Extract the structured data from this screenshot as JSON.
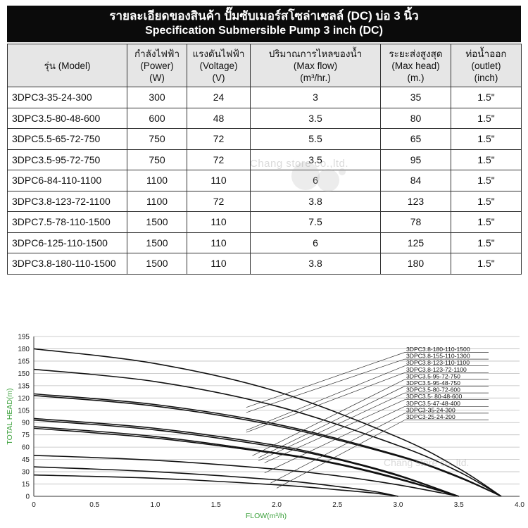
{
  "header": {
    "title_th": "รายละเอียดของสินค้า ปั๊มซับเมอร์สโซล่าเซลล์ (DC) บ่อ 3 นิ้ว",
    "title_en": "Specification Submersible Pump 3 inch (DC)"
  },
  "watermark": "Chang store co.,ltd.",
  "table": {
    "headers": [
      [
        "รุ่น (Model)"
      ],
      [
        "กำลังไฟฟ้า",
        "(Power)",
        "(W)"
      ],
      [
        "แรงดันไฟฟ้า",
        "(Voltage)",
        "(V)"
      ],
      [
        "ปริมาณการไหลของน้ำ",
        "(Max flow)",
        "(m³/hr.)"
      ],
      [
        "ระยะส่งสูงสุด",
        "(Max head)",
        "(m.)"
      ],
      [
        "ท่อน้ำออก",
        "(outlet)",
        "(inch)"
      ]
    ],
    "rows": [
      [
        "3DPC3-35-24-300",
        "300",
        "24",
        "3",
        "35",
        "1.5\""
      ],
      [
        "3DPC3.5-80-48-600",
        "600",
        "48",
        "3.5",
        "80",
        "1.5\""
      ],
      [
        "3DPC5.5-65-72-750",
        "750",
        "72",
        "5.5",
        "65",
        "1.5\""
      ],
      [
        "3DPC3.5-95-72-750",
        "750",
        "72",
        "3.5",
        "95",
        "1.5\""
      ],
      [
        "3DPC6-84-110-1100",
        "1100",
        "110",
        "6",
        "84",
        "1.5\""
      ],
      [
        "3DPC3.8-123-72-1100",
        "1100",
        "72",
        "3.8",
        "123",
        "1.5\""
      ],
      [
        "3DPC7.5-78-110-1500",
        "1500",
        "110",
        "7.5",
        "78",
        "1.5\""
      ],
      [
        "3DPC6-125-110-1500",
        "1500",
        "110",
        "6",
        "125",
        "1.5\""
      ],
      [
        "3DPC3.8-180-110-1500",
        "1500",
        "110",
        "3.8",
        "180",
        "1.5\""
      ]
    ]
  },
  "chart_data": {
    "type": "line",
    "title": "",
    "xlabel": "FLOW(m³/h)",
    "ylabel": "TOTAL HEAD(m)",
    "xlim": [
      0,
      4.0
    ],
    "ylim": [
      0,
      195
    ],
    "xticks": [
      "0",
      "0.5",
      "1.0",
      "1.5",
      "2.0",
      "2.5",
      "3.0",
      "3.5",
      "4.0"
    ],
    "yticks": [
      "0",
      "15",
      "30",
      "45",
      "60",
      "75",
      "90",
      "105",
      "120",
      "135",
      "150",
      "165",
      "180",
      "195"
    ],
    "grid": "horizontal",
    "legend_position": "right",
    "axis_label_color": "#3aa03a",
    "series": [
      {
        "name": "3DPC3.8-180-110-1500",
        "x": [
          0,
          1.0,
          2.0,
          3.0,
          3.5,
          3.85
        ],
        "y": [
          180,
          162,
          128,
          72,
          34,
          0
        ]
      },
      {
        "name": "3DPC3.8-155-110-1300",
        "x": [
          0,
          1.0,
          2.0,
          3.0,
          3.5,
          3.85
        ],
        "y": [
          155,
          140,
          110,
          62,
          30,
          0
        ]
      },
      {
        "name": "3DPC3.8-123-110-1100",
        "x": [
          0,
          1.0,
          2.0,
          3.0,
          3.5,
          3.85
        ],
        "y": [
          125,
          112,
          88,
          50,
          24,
          0
        ]
      },
      {
        "name": "3DPC3.8-123-72-1100",
        "x": [
          0,
          1.0,
          2.0,
          3.0,
          3.5,
          3.85
        ],
        "y": [
          123,
          110,
          86,
          49,
          23,
          0
        ]
      },
      {
        "name": "3DPC3.5-95-72-750",
        "x": [
          0,
          1.0,
          2.0,
          2.5,
          3.0,
          3.5
        ],
        "y": [
          95,
          83,
          62,
          46,
          26,
          0
        ]
      },
      {
        "name": "3DPC3.5-95-48-750",
        "x": [
          0,
          1.0,
          2.0,
          2.5,
          3.0,
          3.5
        ],
        "y": [
          93,
          81,
          60,
          45,
          25,
          0
        ]
      },
      {
        "name": "3DPC3.5-80-72-600",
        "x": [
          0,
          1.0,
          2.0,
          2.5,
          3.0,
          3.5
        ],
        "y": [
          85,
          73,
          53,
          40,
          22,
          0
        ]
      },
      {
        "name": "3DPC3.5- 80-48-600",
        "x": [
          0,
          1.0,
          2.0,
          2.5,
          3.0,
          3.5
        ],
        "y": [
          83,
          71,
          52,
          39,
          21,
          0
        ]
      },
      {
        "name": "3DPC3.5-47-48-400",
        "x": [
          0,
          1.0,
          2.0,
          2.5,
          3.0,
          3.5
        ],
        "y": [
          50,
          44,
          33,
          25,
          14,
          0
        ]
      },
      {
        "name": "3DPC3-35-24-300",
        "x": [
          0,
          1.0,
          2.0,
          2.5,
          2.8,
          3.0
        ],
        "y": [
          36,
          30,
          20,
          12,
          6,
          0
        ]
      },
      {
        "name": "3DPC3-25-24-200",
        "x": [
          0,
          1.0,
          2.0,
          2.5,
          2.8,
          3.0
        ],
        "y": [
          26,
          22,
          14,
          8,
          4,
          0
        ]
      }
    ]
  }
}
